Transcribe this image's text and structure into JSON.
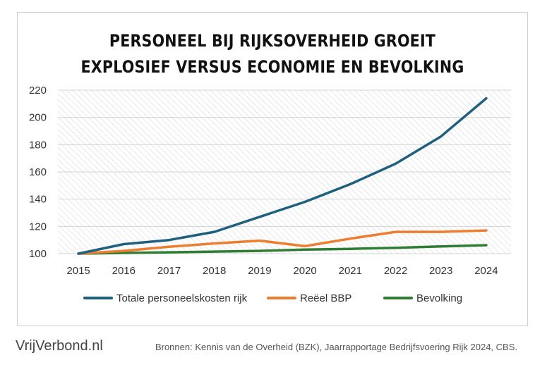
{
  "chart_data": {
    "type": "line",
    "title_lines": [
      "PERSONEEL BIJ RIJKSOVERHEID GROEIT",
      "EXPLOSIEF VERSUS ECONOMIE EN BEVOLKING"
    ],
    "categories": [
      "2015",
      "2016",
      "2017",
      "2018",
      "2019",
      "2020",
      "2021",
      "2022",
      "2023",
      "2024"
    ],
    "series": [
      {
        "name": "Totale personeelskosten rijk",
        "color": "#1f5f7f",
        "values": [
          100,
          107,
          110,
          116,
          127,
          138,
          151,
          166,
          186,
          214
        ]
      },
      {
        "name": "Reëel BBP",
        "color": "#ed7d31",
        "values": [
          100,
          102,
          105,
          107.5,
          109.5,
          105.5,
          111,
          116,
          116,
          117
        ]
      },
      {
        "name": "Bevolking",
        "color": "#2e7d32",
        "values": [
          100,
          100.5,
          101,
          101.5,
          102,
          103,
          103.5,
          104.3,
          105.3,
          106.2
        ]
      }
    ],
    "ylim": [
      100,
      220
    ],
    "yticks": [
      100,
      120,
      140,
      160,
      180,
      200,
      220
    ],
    "xlabel": "",
    "ylabel": "",
    "legend_position": "bottom"
  },
  "footer": {
    "brand": "VrijVerbond.nl",
    "sources": "Bronnen: Kennis van de Overheid (BZK), Jaarrapportage Bedrijfsvoering Rijk 2024, CBS."
  }
}
